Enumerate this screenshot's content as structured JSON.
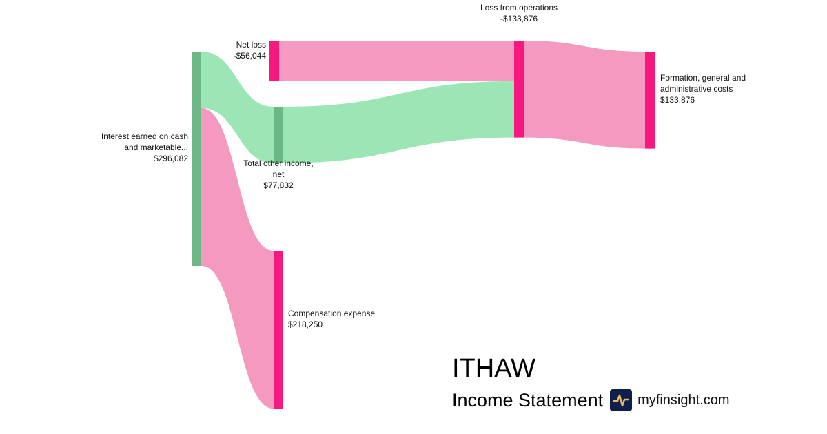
{
  "chart_data": {
    "type": "sankey",
    "title": "ITHAW",
    "subtitle": "Income Statement",
    "nodes": [
      {
        "id": "interest",
        "label": [
          "Interest earned on cash",
          "and marketable..."
        ],
        "value": "$296,082",
        "amount": 296082,
        "color": "#6bb886"
      },
      {
        "id": "other",
        "label": [
          "Total other income,",
          "net"
        ],
        "value": "$77,832",
        "amount": 77832,
        "color": "#6bb886"
      },
      {
        "id": "comp",
        "label": [
          "Compensation expense"
        ],
        "value": "$218,250",
        "amount": 218250,
        "color": "#f5197f"
      },
      {
        "id": "netloss",
        "label": [
          "Net loss"
        ],
        "value": "-$56,044",
        "amount": -56044,
        "color": "#f5197f"
      },
      {
        "id": "ops",
        "label": [
          "Loss from operations"
        ],
        "value": "-$133,876",
        "amount": -133876,
        "color": "#f5197f"
      },
      {
        "id": "formation",
        "label": [
          "Formation, general and",
          "administrative costs"
        ],
        "value": "$133,876",
        "amount": 133876,
        "color": "#f5197f"
      }
    ],
    "links": [
      {
        "source": "interest",
        "target": "other",
        "value": 77832,
        "color": "#9be6b4"
      },
      {
        "source": "interest",
        "target": "comp",
        "value": 218250,
        "color": "#f49ac0"
      },
      {
        "source": "other",
        "target": "ops",
        "value": 77832,
        "color": "#9be6b4"
      },
      {
        "source": "netloss",
        "target": "ops",
        "value": 56044,
        "color": "#f49ac0"
      },
      {
        "source": "ops",
        "target": "formation",
        "value": 133876,
        "color": "#f49ac0"
      }
    ]
  },
  "branding": {
    "ticker": "ITHAW",
    "subtitle": "Income Statement",
    "site": "myfinsight.com",
    "logo_icon": "pulse-icon"
  }
}
